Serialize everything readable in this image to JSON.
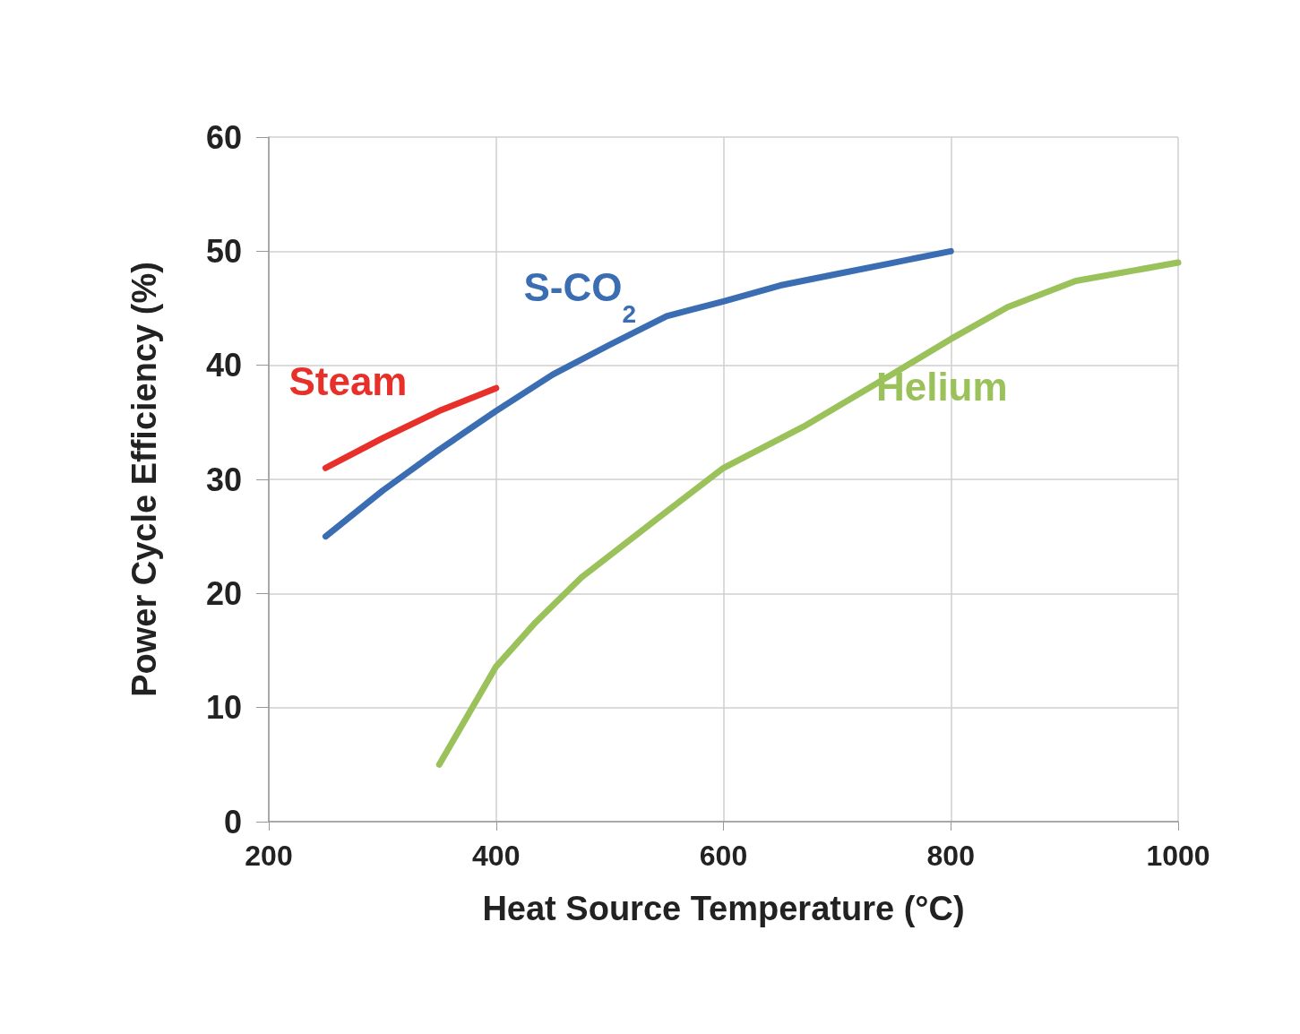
{
  "chart_data": {
    "type": "line",
    "xlabel": "Heat Source Temperature (°C)",
    "ylabel": "Power Cycle Efficiency (%)",
    "xlim": [
      200,
      1000
    ],
    "xticks": [
      200,
      400,
      600,
      800,
      1000
    ],
    "ylim": [
      0,
      60
    ],
    "yticks": [
      0,
      10,
      20,
      30,
      40,
      50,
      60
    ],
    "grid": true,
    "legend": false,
    "marker": "none",
    "line_style": "solid",
    "series": [
      {
        "name": "Steam",
        "color": "#e8302a",
        "x": [
          250,
          300,
          350,
          400
        ],
        "values": [
          31,
          33.6,
          36,
          38
        ]
      },
      {
        "name": "S-CO$_{2}$",
        "color": "#3b6db3",
        "x": [
          250,
          300,
          350,
          400,
          450,
          500,
          550,
          600,
          650,
          700,
          750,
          800
        ],
        "values": [
          25,
          29,
          32.6,
          36,
          39.2,
          41.8,
          44.3,
          45.6,
          47,
          48,
          49,
          50
        ]
      },
      {
        "name": "Helium",
        "color": "#9bc25a",
        "x": [
          350,
          400,
          435,
          475,
          545,
          600,
          670,
          750,
          800,
          850,
          910,
          1000
        ],
        "values": [
          5,
          13.6,
          17.5,
          21.4,
          26.8,
          31,
          34.6,
          39.3,
          42.3,
          45.1,
          47.4,
          49
        ]
      }
    ]
  }
}
